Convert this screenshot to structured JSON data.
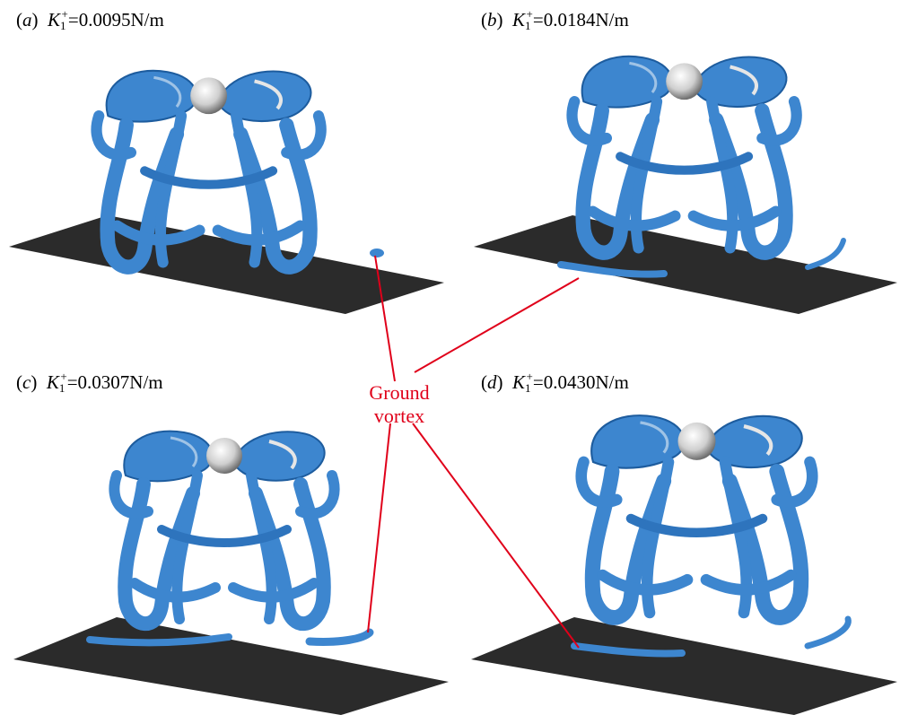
{
  "panels": [
    {
      "letter": "a",
      "sym": "K",
      "sub": "1",
      "sup": "+",
      "value": "=0.0095N/m"
    },
    {
      "letter": "b",
      "sym": "K",
      "sub": "1",
      "sup": "+",
      "value": "=0.0184N/m"
    },
    {
      "letter": "c",
      "sym": "K",
      "sub": "1",
      "sup": "+",
      "value": "=0.0307N/m"
    },
    {
      "letter": "d",
      "sym": "K",
      "sub": "1",
      "sup": "+",
      "value": "=0.0430N/m"
    }
  ],
  "annotation": {
    "line1": "Ground",
    "line2": "vortex",
    "color": "#e0001a"
  },
  "colors": {
    "vortex": "#3d86cf",
    "vortex_dark": "#1d5c9e",
    "ground": "#2b2b2b",
    "sphere": "#d9d9d9"
  }
}
